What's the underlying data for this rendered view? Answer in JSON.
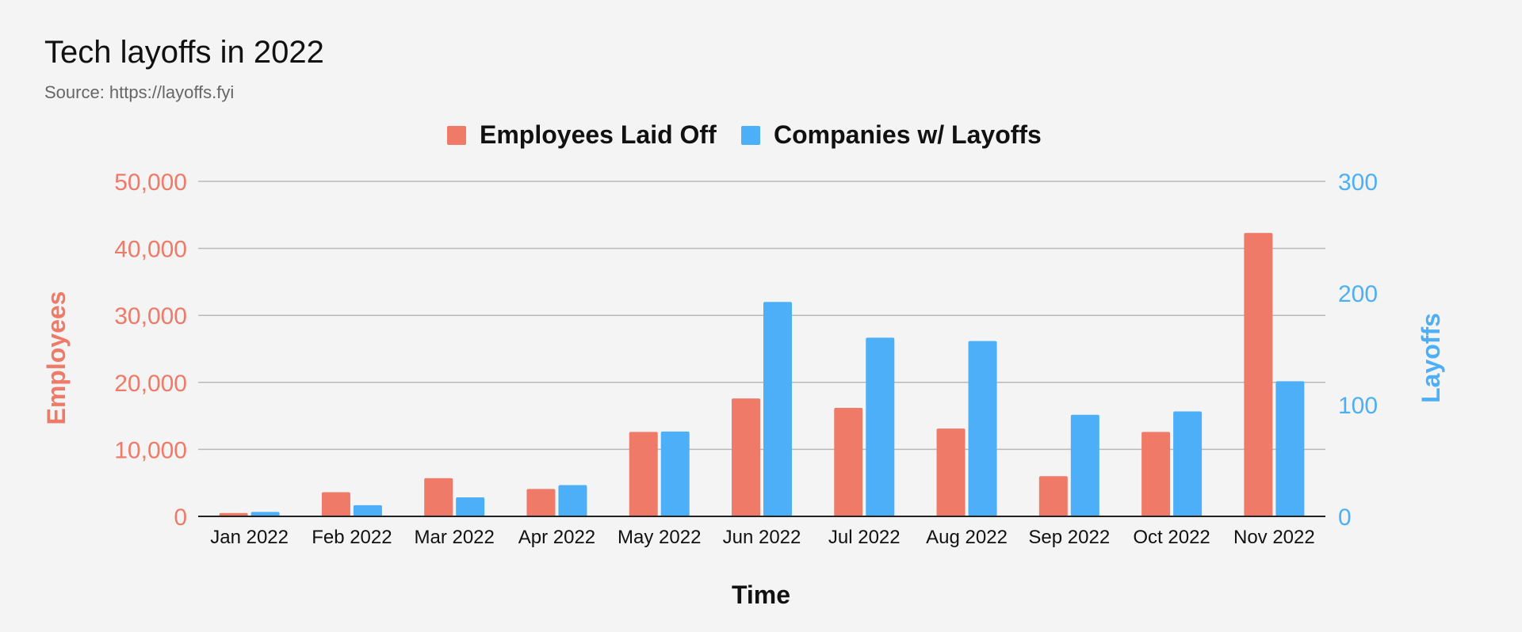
{
  "title": "Tech layoffs in 2022",
  "subtitle": "Source: https://layoffs.fyi",
  "colors": {
    "employees": "#f07a68",
    "companies": "#4daff8",
    "grid": "#b8b8b8",
    "axis": "#222222",
    "text": "#111111"
  },
  "chart_data": {
    "type": "bar",
    "categories": [
      "Jan 2022",
      "Feb 2022",
      "Mar 2022",
      "Apr 2022",
      "May 2022",
      "Jun 2022",
      "Jul 2022",
      "Aug 2022",
      "Sep 2022",
      "Oct 2022",
      "Nov 2022"
    ],
    "series": [
      {
        "name": "Employees Laid Off",
        "axis": "left",
        "values": [
          500,
          3600,
          5700,
          4100,
          12600,
          17600,
          16200,
          13100,
          6000,
          12600,
          42300
        ]
      },
      {
        "name": "Companies w/ Layoffs",
        "axis": "right",
        "values": [
          4,
          10,
          17,
          28,
          76,
          192,
          160,
          157,
          91,
          94,
          121
        ]
      }
    ],
    "xlabel": "Time",
    "ylabel_left": "Employees",
    "ylabel_right": "Layoffs",
    "ylim_left": [
      0,
      50000
    ],
    "ylim_right": [
      0,
      300
    ],
    "yticks_left": [
      "0",
      "10,000",
      "20,000",
      "30,000",
      "40,000",
      "50,000"
    ],
    "yticks_right": [
      "0",
      "100",
      "200",
      "300"
    ],
    "legend_position": "top-center",
    "grid": true
  }
}
